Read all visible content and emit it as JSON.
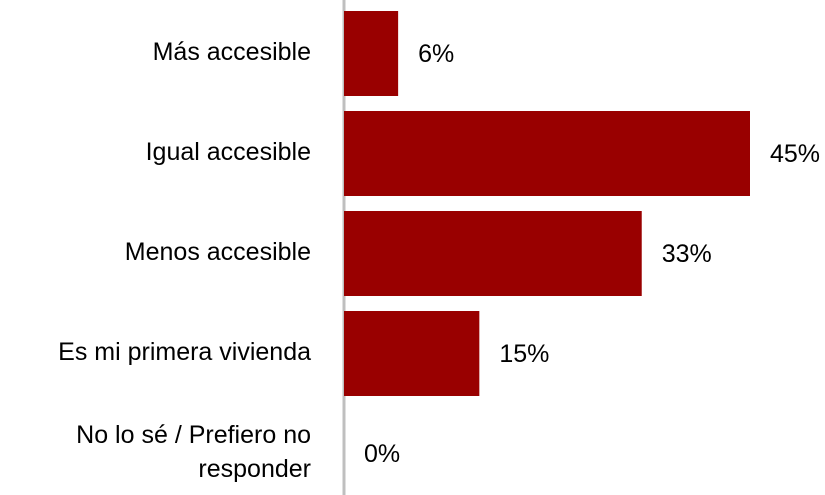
{
  "chart_data": {
    "type": "bar",
    "orientation": "horizontal",
    "categories": [
      [
        "Más accesible"
      ],
      [
        "Igual accesible"
      ],
      [
        "Menos accesible"
      ],
      [
        "Es mi primera vivienda"
      ],
      [
        "No lo sé / Prefiero no",
        "responder"
      ]
    ],
    "values": [
      6,
      45,
      33,
      15,
      0
    ],
    "value_labels": [
      "6%",
      "45%",
      "33%",
      "15%",
      "0%"
    ],
    "value_unit": "%",
    "title": "",
    "xlabel": "",
    "ylabel": "",
    "xlim": [
      0,
      45
    ],
    "grid": false,
    "legend": "none",
    "colors": {
      "bar": "#990000",
      "axis": "#BFBFBF",
      "text": "#000000"
    }
  }
}
